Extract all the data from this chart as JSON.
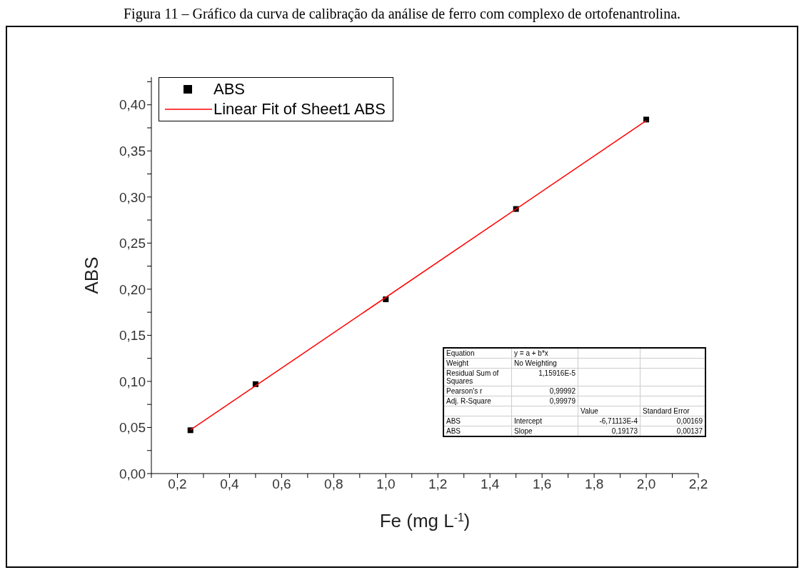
{
  "chart_data": {
    "type": "scatter",
    "title": "Figura 11 – Gráfico da curva de calibração da análise de ferro com complexo de ortofenantrolina.",
    "xlabel": "Fe (mg L$^{-1}$)",
    "ylabel": "ABS",
    "legend": "top left",
    "grid": false,
    "marker": "square",
    "series": [
      {
        "name": "ABS",
        "color": "#000000",
        "x": [
          0.25,
          0.5,
          1.0,
          1.5,
          2.0
        ],
        "values": [
          0.047,
          0.097,
          0.189,
          0.287,
          0.384
        ]
      },
      {
        "name": "Linear Fit of Sheet1 ABS",
        "type": "line",
        "marker": "none",
        "color": "#ff0000",
        "x": [
          0.25,
          2.0
        ],
        "values": [
          0.0473,
          0.3828
        ]
      }
    ],
    "xlim": [
      0.1,
      2.2
    ],
    "xticks": [
      {
        "value": 0.1,
        "label": null
      },
      {
        "value": 0.2,
        "label": "0,2"
      },
      {
        "value": 0.3,
        "label": null
      },
      {
        "value": 0.4,
        "label": "0,4"
      },
      {
        "value": 0.5,
        "label": null
      },
      {
        "value": 0.6,
        "label": "0,6"
      },
      {
        "value": 0.7,
        "label": null
      },
      {
        "value": 0.8,
        "label": "0,8"
      },
      {
        "value": 0.9,
        "label": null
      },
      {
        "value": 1.0,
        "label": "1,0"
      },
      {
        "value": 1.1,
        "label": null
      },
      {
        "value": 1.2,
        "label": "1,2"
      },
      {
        "value": 1.3,
        "label": null
      },
      {
        "value": 1.4,
        "label": "1,4"
      },
      {
        "value": 1.5,
        "label": null
      },
      {
        "value": 1.6,
        "label": "1,6"
      },
      {
        "value": 1.7,
        "label": null
      },
      {
        "value": 1.8,
        "label": "1,8"
      },
      {
        "value": 1.9,
        "label": null
      },
      {
        "value": 2.0,
        "label": "2,0"
      },
      {
        "value": 2.1,
        "label": null
      },
      {
        "value": 2.2,
        "label": "2,2"
      }
    ],
    "ylim": [
      0,
      0.43
    ],
    "yticks": [
      {
        "value": 0,
        "label": "0,00"
      },
      {
        "value": 0.025,
        "label": null
      },
      {
        "value": 0.05,
        "label": "0,05"
      },
      {
        "value": 0.075,
        "label": null
      },
      {
        "value": 0.1,
        "label": "0,10"
      },
      {
        "value": 0.125,
        "label": null
      },
      {
        "value": 0.15,
        "label": "0,15"
      },
      {
        "value": 0.175,
        "label": null
      },
      {
        "value": 0.2,
        "label": "0,20"
      },
      {
        "value": 0.225,
        "label": null
      },
      {
        "value": 0.25,
        "label": "0,25"
      },
      {
        "value": 0.275,
        "label": null
      },
      {
        "value": 0.3,
        "label": "0,30"
      },
      {
        "value": 0.325,
        "label": null
      },
      {
        "value": 0.35,
        "label": "0,35"
      },
      {
        "value": 0.375,
        "label": null
      },
      {
        "value": 0.4,
        "label": "0,40"
      },
      {
        "value": 0.425,
        "label": null
      }
    ],
    "annotations": [
      "Equation\ty = a + b*x\t\t",
      "Weight\tNo Weighting\t\t",
      "Residual Sum of Squares\t1,15916E-5\t\t",
      "Pearson's r\t0,99992\t\t",
      "Adj. R-Square\t0,99979\t\t",
      "\t\tValue\tStandard Error",
      "ABS\tIntercept\t-6,71113E-4\t0,00169",
      "ABS\tSlope\t0,19173\t0,00137"
    ]
  }
}
